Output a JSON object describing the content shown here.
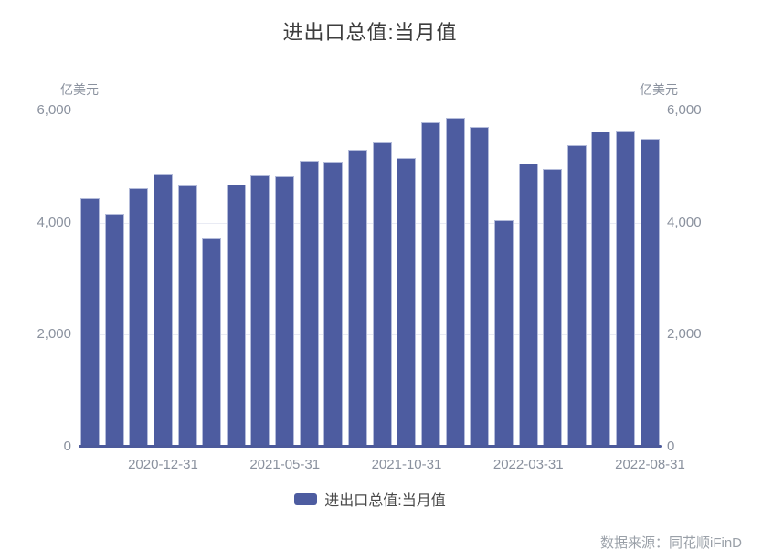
{
  "title": "进出口总值:当月值",
  "unit_left": "亿美元",
  "unit_right": "亿美元",
  "legend": {
    "label": "进出口总值:当月值"
  },
  "source": "数据来源：同花顺iFinD",
  "colors": {
    "bar": "#4d5ca0",
    "bar_edge": "#b3bbda",
    "axis_line": "#4c5a9b",
    "gridline": "#e9ebf4",
    "tick_text": "#8a919e",
    "title_text": "#3d3d3d",
    "legend_text": "#4a4a4a",
    "source_text": "#9aa0a8"
  },
  "chart_data": {
    "type": "bar",
    "title": "进出口总值:当月值",
    "ylabel": "亿美元",
    "ylim": [
      0,
      6000
    ],
    "grid": true,
    "legend_position": "bottom",
    "series": [
      {
        "name": "进出口总值:当月值",
        "values": [
          4430,
          4160,
          4610,
          4860,
          4670,
          3720,
          4680,
          4850,
          4820,
          5110,
          5090,
          5300,
          5450,
          5160,
          5790,
          5870,
          5700,
          4050,
          5050,
          4960,
          5380,
          5620,
          5640,
          5500
        ]
      }
    ],
    "y_ticks": [
      {
        "value": 0,
        "label": "0"
      },
      {
        "value": 2000,
        "label": "2,000"
      },
      {
        "value": 4000,
        "label": "4,000"
      },
      {
        "value": 6000,
        "label": "6,000"
      }
    ],
    "x_ticks": [
      {
        "index": 3,
        "label": "2020-12-31"
      },
      {
        "index": 8,
        "label": "2021-05-31"
      },
      {
        "index": 13,
        "label": "2021-10-31"
      },
      {
        "index": 18,
        "label": "2022-03-31"
      },
      {
        "index": 23,
        "label": "2022-08-31"
      }
    ]
  }
}
